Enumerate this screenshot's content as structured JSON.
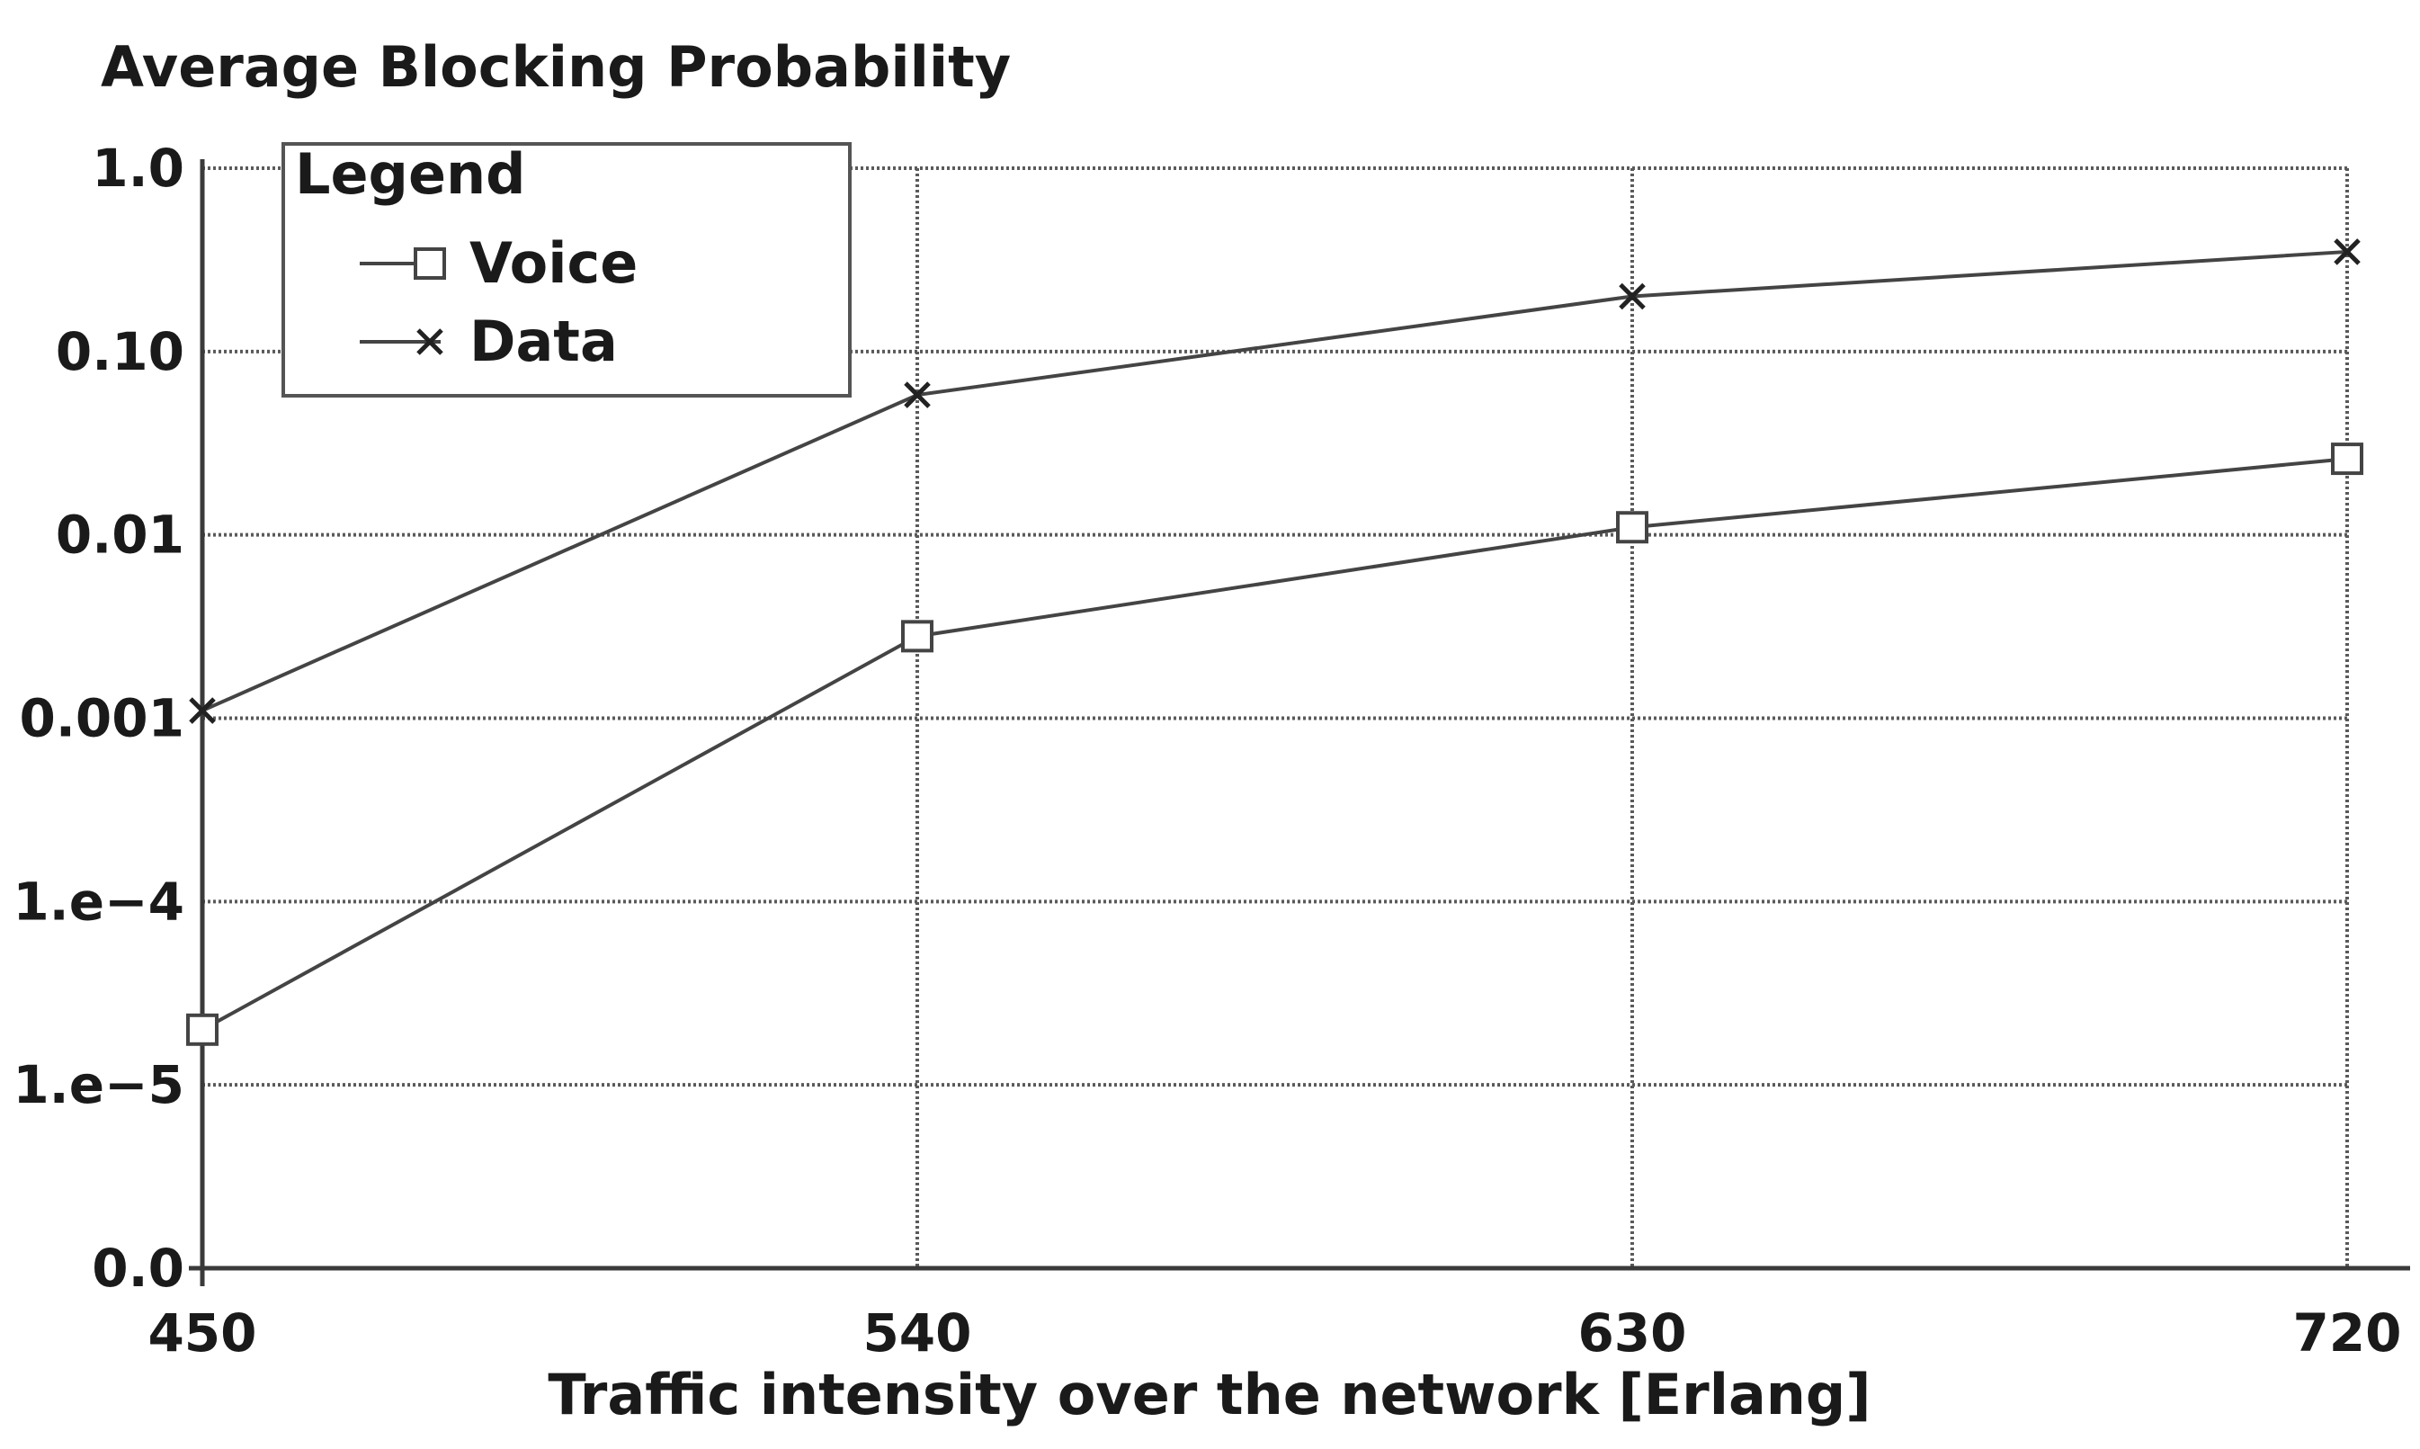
{
  "chart_data": {
    "type": "line",
    "title": "Average Blocking Probability",
    "xlabel": "Traffic intensity over the network [Erlang]",
    "ylabel": "",
    "x": [
      450,
      540,
      630,
      720
    ],
    "x_tick_labels": [
      "450",
      "540",
      "630",
      "720"
    ],
    "xlim": [
      450,
      720
    ],
    "y_scale": "log",
    "y_tick_labels": [
      "1.0",
      "0.10",
      "0.01",
      "0.001",
      "1.e−4",
      "1.e−5",
      "0.0"
    ],
    "y_tick_values": [
      1.0,
      0.1,
      0.01,
      0.001,
      0.0001,
      1e-05,
      1e-06
    ],
    "ylim": [
      1e-06,
      1.0
    ],
    "grid": true,
    "legend": {
      "title": "Legend",
      "placement": "top-left"
    },
    "series": [
      {
        "name": "Voice",
        "marker": "square",
        "values": [
          2e-05,
          0.0028,
          0.011,
          0.026
        ]
      },
      {
        "name": "Data",
        "marker": "x",
        "values": [
          0.0011,
          0.058,
          0.2,
          0.35
        ]
      }
    ]
  }
}
